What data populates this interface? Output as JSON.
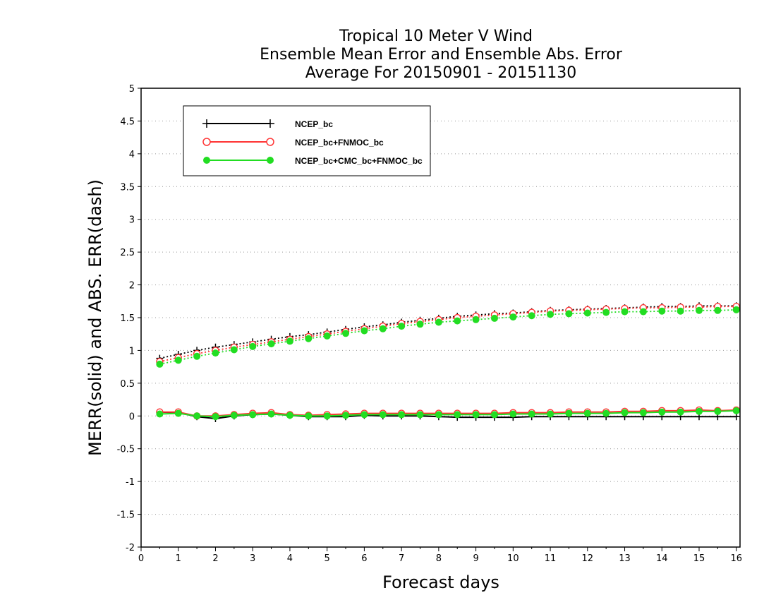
{
  "chart_data": {
    "type": "line",
    "title": [
      "Tropical 10 Meter V Wind",
      "Ensemble Mean Error and Ensemble Abs. Error",
      "Average For 20150901 - 20151130"
    ],
    "xlabel": "Forecast days",
    "ylabel": "MERR(solid) and ABS. ERR(dash)",
    "xlim": [
      0,
      16.1
    ],
    "ylim": [
      -2,
      5
    ],
    "x_ticks": [
      "0",
      "1",
      "2",
      "3",
      "4",
      "5",
      "6",
      "7",
      "8",
      "9",
      "10",
      "11",
      "12",
      "13",
      "14",
      "15",
      "16"
    ],
    "y_ticks": [
      "5",
      "4.5",
      "4",
      "3.5",
      "3",
      "2.5",
      "2",
      "1.5",
      "1",
      "0.5",
      "0",
      "-0.5",
      "-1",
      "-1.5",
      "-2"
    ],
    "grid": "horizontal dotted",
    "legend_position": "top-left",
    "x": [
      0.5,
      1,
      1.5,
      2,
      2.5,
      3,
      3.5,
      4,
      4.5,
      5,
      5.5,
      6,
      6.5,
      7,
      7.5,
      8,
      8.5,
      9,
      9.5,
      10,
      10.5,
      11,
      11.5,
      12,
      12.5,
      13,
      13.5,
      14,
      14.5,
      15,
      15.5,
      16
    ],
    "series": [
      {
        "name": "NCEP_bc",
        "color": "#000000",
        "marker": "plus",
        "merr": [
          0.06,
          0.05,
          -0.01,
          -0.04,
          0.0,
          0.02,
          0.03,
          0.01,
          -0.01,
          -0.01,
          -0.01,
          0.01,
          0.0,
          0.0,
          0.0,
          -0.01,
          -0.02,
          -0.02,
          -0.02,
          -0.02,
          -0.01,
          -0.01,
          -0.01,
          -0.01,
          -0.01,
          -0.01,
          -0.01,
          -0.01,
          -0.01,
          -0.01,
          -0.01,
          -0.01
        ],
        "abs_err": [
          0.88,
          0.94,
          1.0,
          1.05,
          1.09,
          1.13,
          1.17,
          1.21,
          1.24,
          1.28,
          1.32,
          1.36,
          1.39,
          1.43,
          1.46,
          1.49,
          1.52,
          1.54,
          1.56,
          1.57,
          1.59,
          1.61,
          1.62,
          1.63,
          1.64,
          1.65,
          1.66,
          1.67,
          1.67,
          1.68,
          1.68,
          1.68
        ]
      },
      {
        "name": "NCEP_bc+FNMOC_bc",
        "color": "#ff3333",
        "marker": "open-circle",
        "merr": [
          0.06,
          0.06,
          0.0,
          0.0,
          0.02,
          0.04,
          0.05,
          0.02,
          0.01,
          0.02,
          0.03,
          0.04,
          0.04,
          0.04,
          0.04,
          0.04,
          0.04,
          0.04,
          0.04,
          0.05,
          0.05,
          0.05,
          0.06,
          0.06,
          0.06,
          0.07,
          0.07,
          0.08,
          0.08,
          0.09,
          0.08,
          0.09
        ],
        "abs_err": [
          0.83,
          0.89,
          0.95,
          1.0,
          1.05,
          1.09,
          1.13,
          1.17,
          1.21,
          1.25,
          1.29,
          1.33,
          1.37,
          1.41,
          1.44,
          1.47,
          1.5,
          1.52,
          1.54,
          1.56,
          1.58,
          1.6,
          1.61,
          1.62,
          1.63,
          1.64,
          1.65,
          1.65,
          1.66,
          1.66,
          1.67,
          1.67
        ]
      },
      {
        "name": "NCEP_bc+CMC_bc+FNMOC_bc",
        "color": "#22dd22",
        "marker": "filled-circle",
        "merr": [
          0.03,
          0.04,
          0.0,
          -0.01,
          0.01,
          0.02,
          0.03,
          0.01,
          0.0,
          0.0,
          0.01,
          0.02,
          0.02,
          0.02,
          0.02,
          0.02,
          0.02,
          0.02,
          0.02,
          0.03,
          0.03,
          0.03,
          0.04,
          0.04,
          0.04,
          0.05,
          0.05,
          0.06,
          0.06,
          0.07,
          0.07,
          0.08
        ],
        "abs_err": [
          0.79,
          0.85,
          0.91,
          0.96,
          1.01,
          1.06,
          1.1,
          1.14,
          1.18,
          1.22,
          1.26,
          1.3,
          1.33,
          1.37,
          1.4,
          1.43,
          1.45,
          1.47,
          1.49,
          1.51,
          1.53,
          1.55,
          1.56,
          1.57,
          1.58,
          1.59,
          1.59,
          1.6,
          1.6,
          1.61,
          1.61,
          1.62
        ]
      }
    ]
  }
}
